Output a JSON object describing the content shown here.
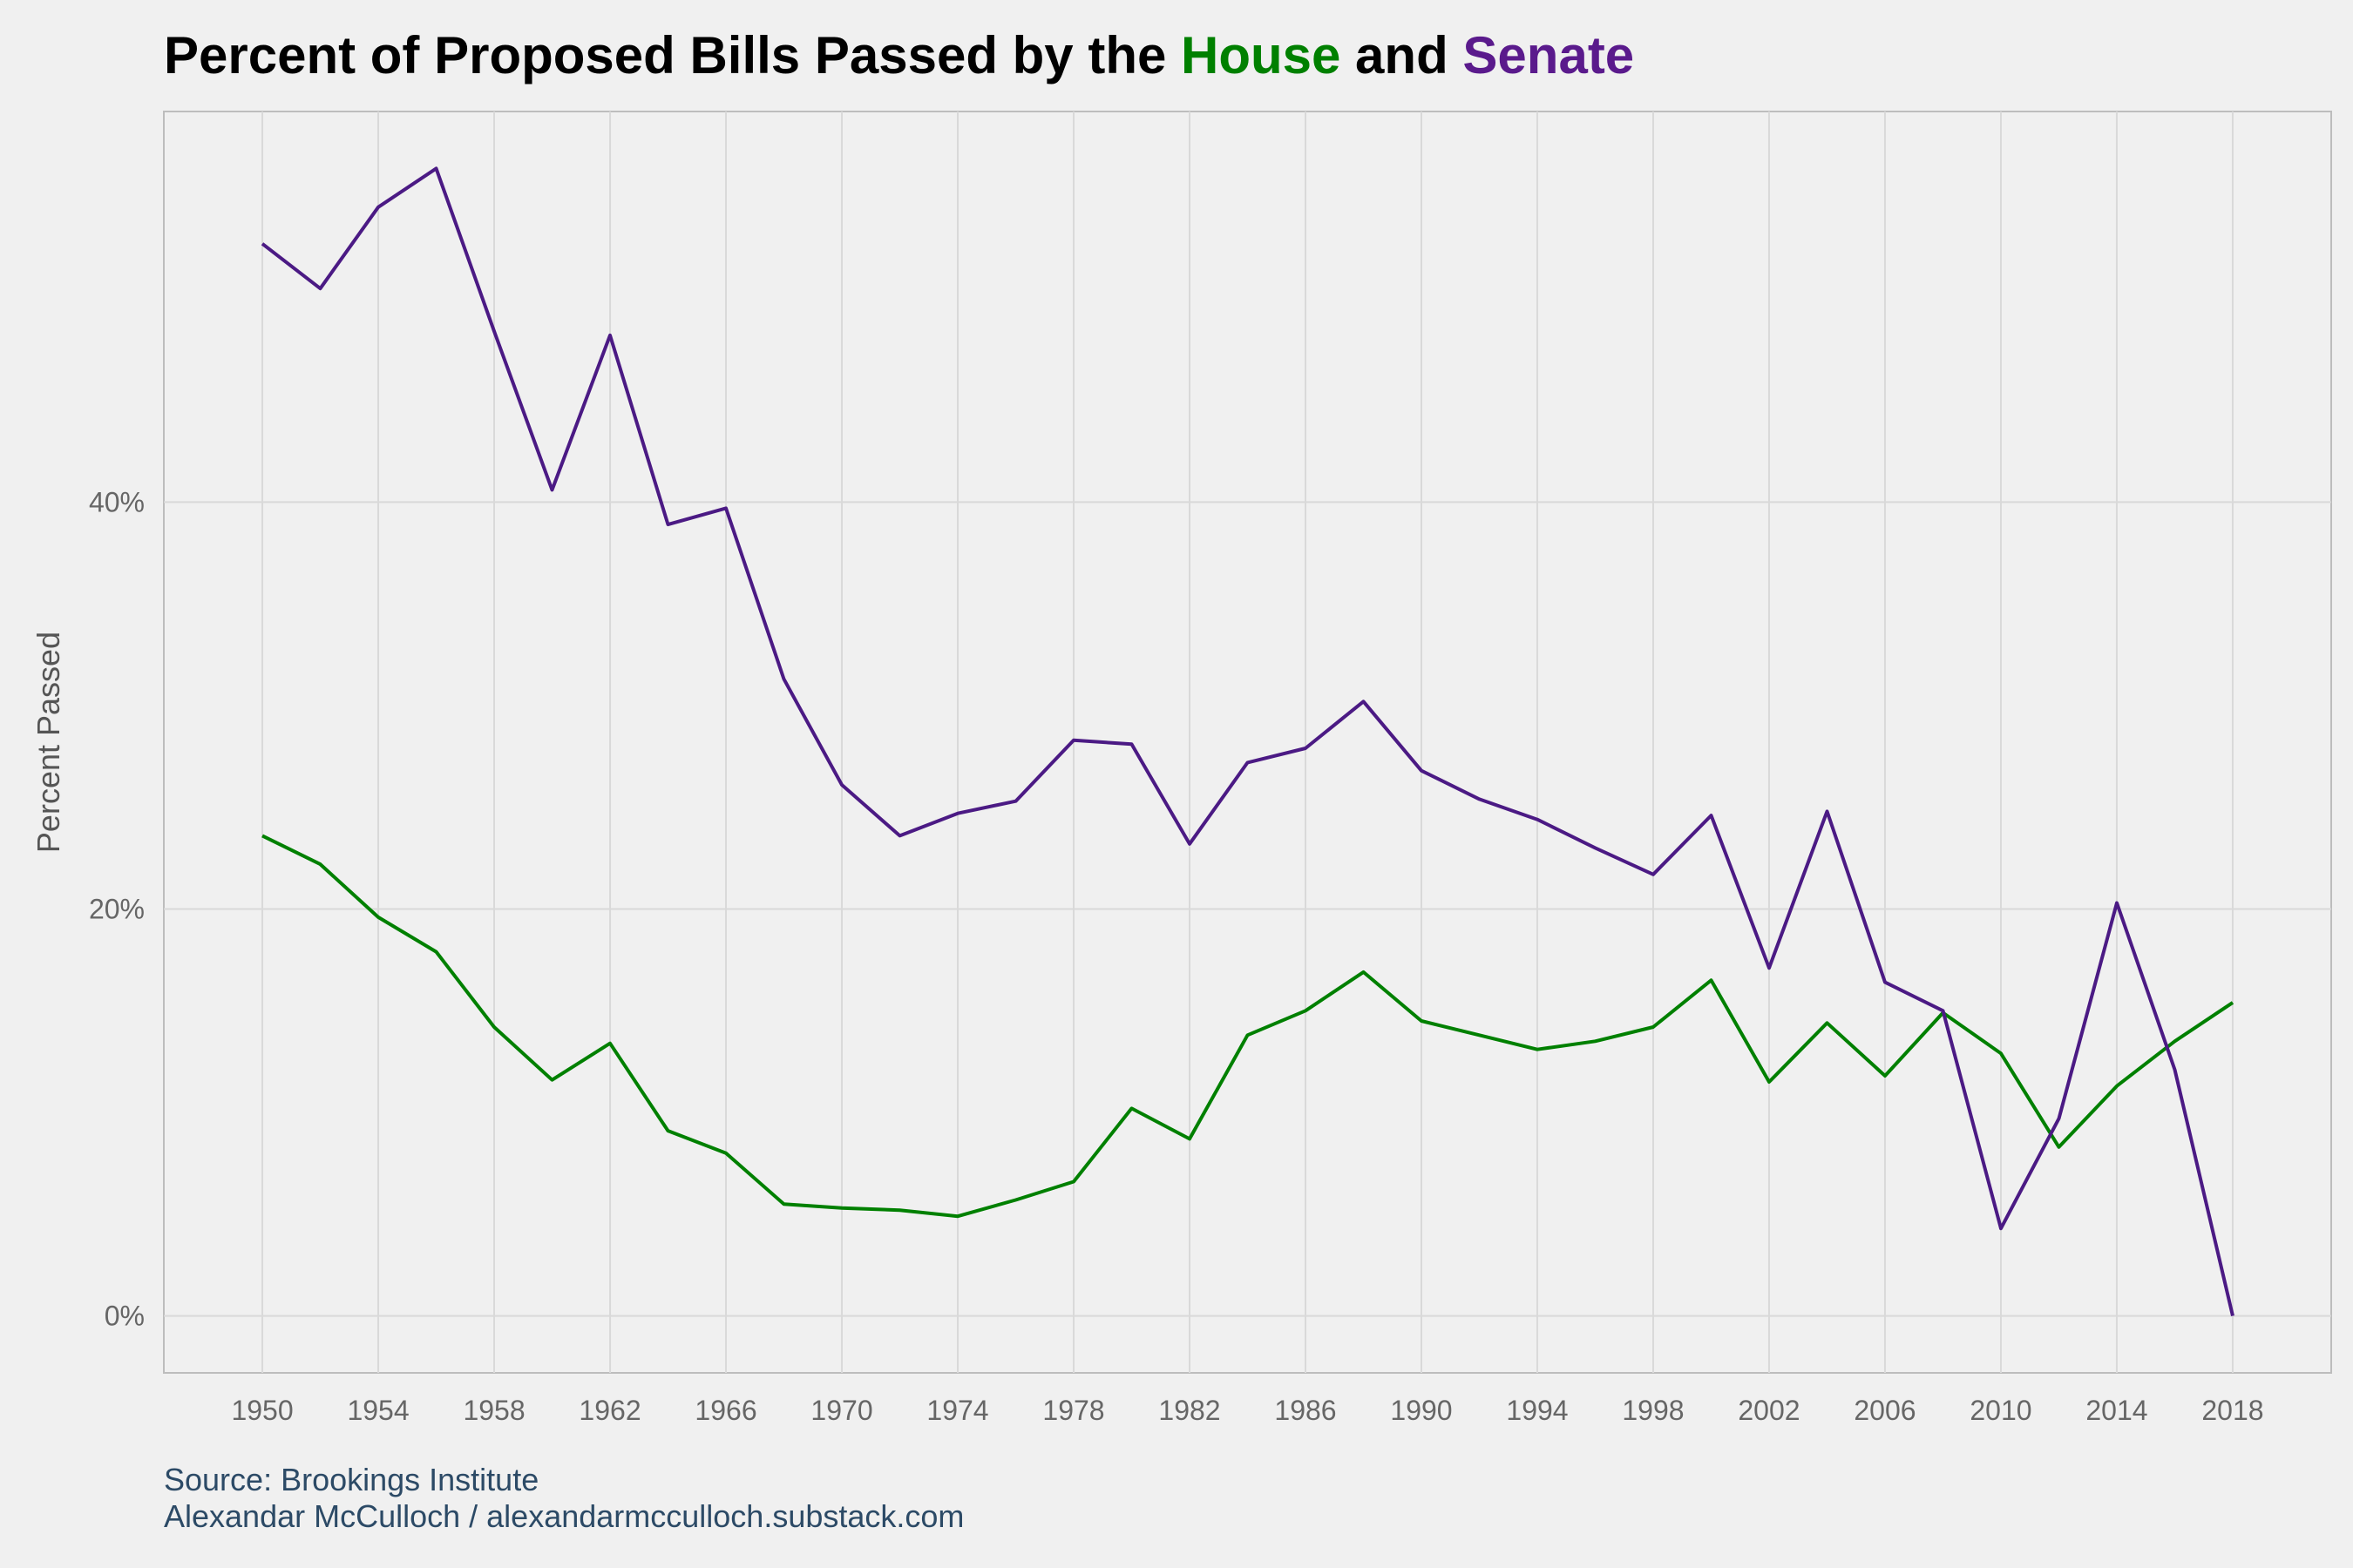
{
  "chart_data": {
    "type": "line",
    "title": {
      "prefix": "Percent of Proposed Bills Passed by the ",
      "house_word": "House",
      "connector": " and ",
      "senate_word": "Senate"
    },
    "ylabel": "Percent Passed",
    "xlabel": "",
    "ylim": [
      -2.8,
      59.2
    ],
    "xlim": [
      1946.6,
      2021.4
    ],
    "x_ticks": [
      1950,
      1954,
      1958,
      1962,
      1966,
      1970,
      1974,
      1978,
      1982,
      1986,
      1990,
      1994,
      1998,
      2002,
      2006,
      2010,
      2014,
      2018
    ],
    "x_tick_labels": [
      "1950",
      "1954",
      "1958",
      "1962",
      "1966",
      "1970",
      "1974",
      "1978",
      "1982",
      "1986",
      "1990",
      "1994",
      "1998",
      "2002",
      "2006",
      "2010",
      "2014",
      "2018"
    ],
    "y_ticks": [
      0,
      20,
      40
    ],
    "y_tick_labels": [
      "0%",
      "20%",
      "40%"
    ],
    "grid": true,
    "legend": "none",
    "x": [
      1950,
      1952,
      1954,
      1956,
      1958,
      1960,
      1962,
      1964,
      1966,
      1968,
      1970,
      1972,
      1974,
      1976,
      1978,
      1980,
      1982,
      1984,
      1986,
      1988,
      1990,
      1992,
      1994,
      1996,
      1998,
      2000,
      2002,
      2004,
      2006,
      2008,
      2010,
      2012,
      2014,
      2016,
      2018
    ],
    "series": [
      {
        "name": "House",
        "color": "#008000",
        "values": [
          23.6,
          22.2,
          19.6,
          17.9,
          14.2,
          11.6,
          13.4,
          9.1,
          8.0,
          5.5,
          5.3,
          5.2,
          4.9,
          5.7,
          6.6,
          10.2,
          8.7,
          13.8,
          15.0,
          16.9,
          14.5,
          13.8,
          13.1,
          13.5,
          14.2,
          16.5,
          11.5,
          14.4,
          11.8,
          14.9,
          12.9,
          8.3,
          11.3,
          13.5,
          15.4
        ]
      },
      {
        "name": "Senate",
        "color": "#4b1a84",
        "values": [
          52.7,
          50.5,
          54.5,
          56.4,
          48.4,
          40.6,
          48.2,
          38.9,
          39.7,
          31.3,
          26.1,
          23.6,
          24.7,
          25.3,
          28.3,
          28.1,
          23.2,
          27.2,
          27.9,
          30.2,
          26.8,
          25.4,
          24.4,
          23.0,
          21.7,
          24.6,
          17.1,
          24.8,
          16.4,
          15.0,
          4.3,
          9.7,
          20.3,
          12.1,
          0.0
        ]
      }
    ]
  },
  "caption": {
    "source": "Source: Brookings Institute",
    "author": "Alexandar McCulloch / alexandarmcculloch.substack.com"
  },
  "colors": {
    "background": "#f0f0f0",
    "grid": "#d9d9d9",
    "house": "#008000",
    "senate": "#5a1a8c"
  }
}
